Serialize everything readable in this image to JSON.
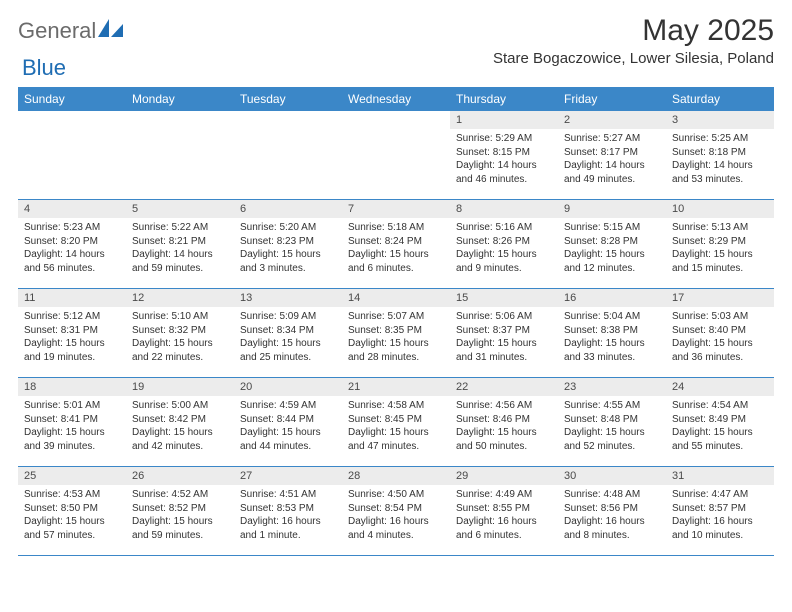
{
  "brand": {
    "name_part1": "General",
    "name_part2": "Blue"
  },
  "colors": {
    "header_bg": "#3b87c8",
    "daynum_bg": "#ececec",
    "text": "#333333",
    "logo_gray": "#6b6b6b",
    "logo_blue": "#1f6db3"
  },
  "title": "May 2025",
  "location": "Stare Bogaczowice, Lower Silesia, Poland",
  "weekdays": [
    "Sunday",
    "Monday",
    "Tuesday",
    "Wednesday",
    "Thursday",
    "Friday",
    "Saturday"
  ],
  "weeks": [
    [
      {
        "empty": true
      },
      {
        "empty": true
      },
      {
        "empty": true
      },
      {
        "empty": true
      },
      {
        "day": "1",
        "sunrise": "Sunrise: 5:29 AM",
        "sunset": "Sunset: 8:15 PM",
        "daylight1": "Daylight: 14 hours",
        "daylight2": "and 46 minutes."
      },
      {
        "day": "2",
        "sunrise": "Sunrise: 5:27 AM",
        "sunset": "Sunset: 8:17 PM",
        "daylight1": "Daylight: 14 hours",
        "daylight2": "and 49 minutes."
      },
      {
        "day": "3",
        "sunrise": "Sunrise: 5:25 AM",
        "sunset": "Sunset: 8:18 PM",
        "daylight1": "Daylight: 14 hours",
        "daylight2": "and 53 minutes."
      }
    ],
    [
      {
        "day": "4",
        "sunrise": "Sunrise: 5:23 AM",
        "sunset": "Sunset: 8:20 PM",
        "daylight1": "Daylight: 14 hours",
        "daylight2": "and 56 minutes."
      },
      {
        "day": "5",
        "sunrise": "Sunrise: 5:22 AM",
        "sunset": "Sunset: 8:21 PM",
        "daylight1": "Daylight: 14 hours",
        "daylight2": "and 59 minutes."
      },
      {
        "day": "6",
        "sunrise": "Sunrise: 5:20 AM",
        "sunset": "Sunset: 8:23 PM",
        "daylight1": "Daylight: 15 hours",
        "daylight2": "and 3 minutes."
      },
      {
        "day": "7",
        "sunrise": "Sunrise: 5:18 AM",
        "sunset": "Sunset: 8:24 PM",
        "daylight1": "Daylight: 15 hours",
        "daylight2": "and 6 minutes."
      },
      {
        "day": "8",
        "sunrise": "Sunrise: 5:16 AM",
        "sunset": "Sunset: 8:26 PM",
        "daylight1": "Daylight: 15 hours",
        "daylight2": "and 9 minutes."
      },
      {
        "day": "9",
        "sunrise": "Sunrise: 5:15 AM",
        "sunset": "Sunset: 8:28 PM",
        "daylight1": "Daylight: 15 hours",
        "daylight2": "and 12 minutes."
      },
      {
        "day": "10",
        "sunrise": "Sunrise: 5:13 AM",
        "sunset": "Sunset: 8:29 PM",
        "daylight1": "Daylight: 15 hours",
        "daylight2": "and 15 minutes."
      }
    ],
    [
      {
        "day": "11",
        "sunrise": "Sunrise: 5:12 AM",
        "sunset": "Sunset: 8:31 PM",
        "daylight1": "Daylight: 15 hours",
        "daylight2": "and 19 minutes."
      },
      {
        "day": "12",
        "sunrise": "Sunrise: 5:10 AM",
        "sunset": "Sunset: 8:32 PM",
        "daylight1": "Daylight: 15 hours",
        "daylight2": "and 22 minutes."
      },
      {
        "day": "13",
        "sunrise": "Sunrise: 5:09 AM",
        "sunset": "Sunset: 8:34 PM",
        "daylight1": "Daylight: 15 hours",
        "daylight2": "and 25 minutes."
      },
      {
        "day": "14",
        "sunrise": "Sunrise: 5:07 AM",
        "sunset": "Sunset: 8:35 PM",
        "daylight1": "Daylight: 15 hours",
        "daylight2": "and 28 minutes."
      },
      {
        "day": "15",
        "sunrise": "Sunrise: 5:06 AM",
        "sunset": "Sunset: 8:37 PM",
        "daylight1": "Daylight: 15 hours",
        "daylight2": "and 31 minutes."
      },
      {
        "day": "16",
        "sunrise": "Sunrise: 5:04 AM",
        "sunset": "Sunset: 8:38 PM",
        "daylight1": "Daylight: 15 hours",
        "daylight2": "and 33 minutes."
      },
      {
        "day": "17",
        "sunrise": "Sunrise: 5:03 AM",
        "sunset": "Sunset: 8:40 PM",
        "daylight1": "Daylight: 15 hours",
        "daylight2": "and 36 minutes."
      }
    ],
    [
      {
        "day": "18",
        "sunrise": "Sunrise: 5:01 AM",
        "sunset": "Sunset: 8:41 PM",
        "daylight1": "Daylight: 15 hours",
        "daylight2": "and 39 minutes."
      },
      {
        "day": "19",
        "sunrise": "Sunrise: 5:00 AM",
        "sunset": "Sunset: 8:42 PM",
        "daylight1": "Daylight: 15 hours",
        "daylight2": "and 42 minutes."
      },
      {
        "day": "20",
        "sunrise": "Sunrise: 4:59 AM",
        "sunset": "Sunset: 8:44 PM",
        "daylight1": "Daylight: 15 hours",
        "daylight2": "and 44 minutes."
      },
      {
        "day": "21",
        "sunrise": "Sunrise: 4:58 AM",
        "sunset": "Sunset: 8:45 PM",
        "daylight1": "Daylight: 15 hours",
        "daylight2": "and 47 minutes."
      },
      {
        "day": "22",
        "sunrise": "Sunrise: 4:56 AM",
        "sunset": "Sunset: 8:46 PM",
        "daylight1": "Daylight: 15 hours",
        "daylight2": "and 50 minutes."
      },
      {
        "day": "23",
        "sunrise": "Sunrise: 4:55 AM",
        "sunset": "Sunset: 8:48 PM",
        "daylight1": "Daylight: 15 hours",
        "daylight2": "and 52 minutes."
      },
      {
        "day": "24",
        "sunrise": "Sunrise: 4:54 AM",
        "sunset": "Sunset: 8:49 PM",
        "daylight1": "Daylight: 15 hours",
        "daylight2": "and 55 minutes."
      }
    ],
    [
      {
        "day": "25",
        "sunrise": "Sunrise: 4:53 AM",
        "sunset": "Sunset: 8:50 PM",
        "daylight1": "Daylight: 15 hours",
        "daylight2": "and 57 minutes."
      },
      {
        "day": "26",
        "sunrise": "Sunrise: 4:52 AM",
        "sunset": "Sunset: 8:52 PM",
        "daylight1": "Daylight: 15 hours",
        "daylight2": "and 59 minutes."
      },
      {
        "day": "27",
        "sunrise": "Sunrise: 4:51 AM",
        "sunset": "Sunset: 8:53 PM",
        "daylight1": "Daylight: 16 hours",
        "daylight2": "and 1 minute."
      },
      {
        "day": "28",
        "sunrise": "Sunrise: 4:50 AM",
        "sunset": "Sunset: 8:54 PM",
        "daylight1": "Daylight: 16 hours",
        "daylight2": "and 4 minutes."
      },
      {
        "day": "29",
        "sunrise": "Sunrise: 4:49 AM",
        "sunset": "Sunset: 8:55 PM",
        "daylight1": "Daylight: 16 hours",
        "daylight2": "and 6 minutes."
      },
      {
        "day": "30",
        "sunrise": "Sunrise: 4:48 AM",
        "sunset": "Sunset: 8:56 PM",
        "daylight1": "Daylight: 16 hours",
        "daylight2": "and 8 minutes."
      },
      {
        "day": "31",
        "sunrise": "Sunrise: 4:47 AM",
        "sunset": "Sunset: 8:57 PM",
        "daylight1": "Daylight: 16 hours",
        "daylight2": "and 10 minutes."
      }
    ]
  ]
}
